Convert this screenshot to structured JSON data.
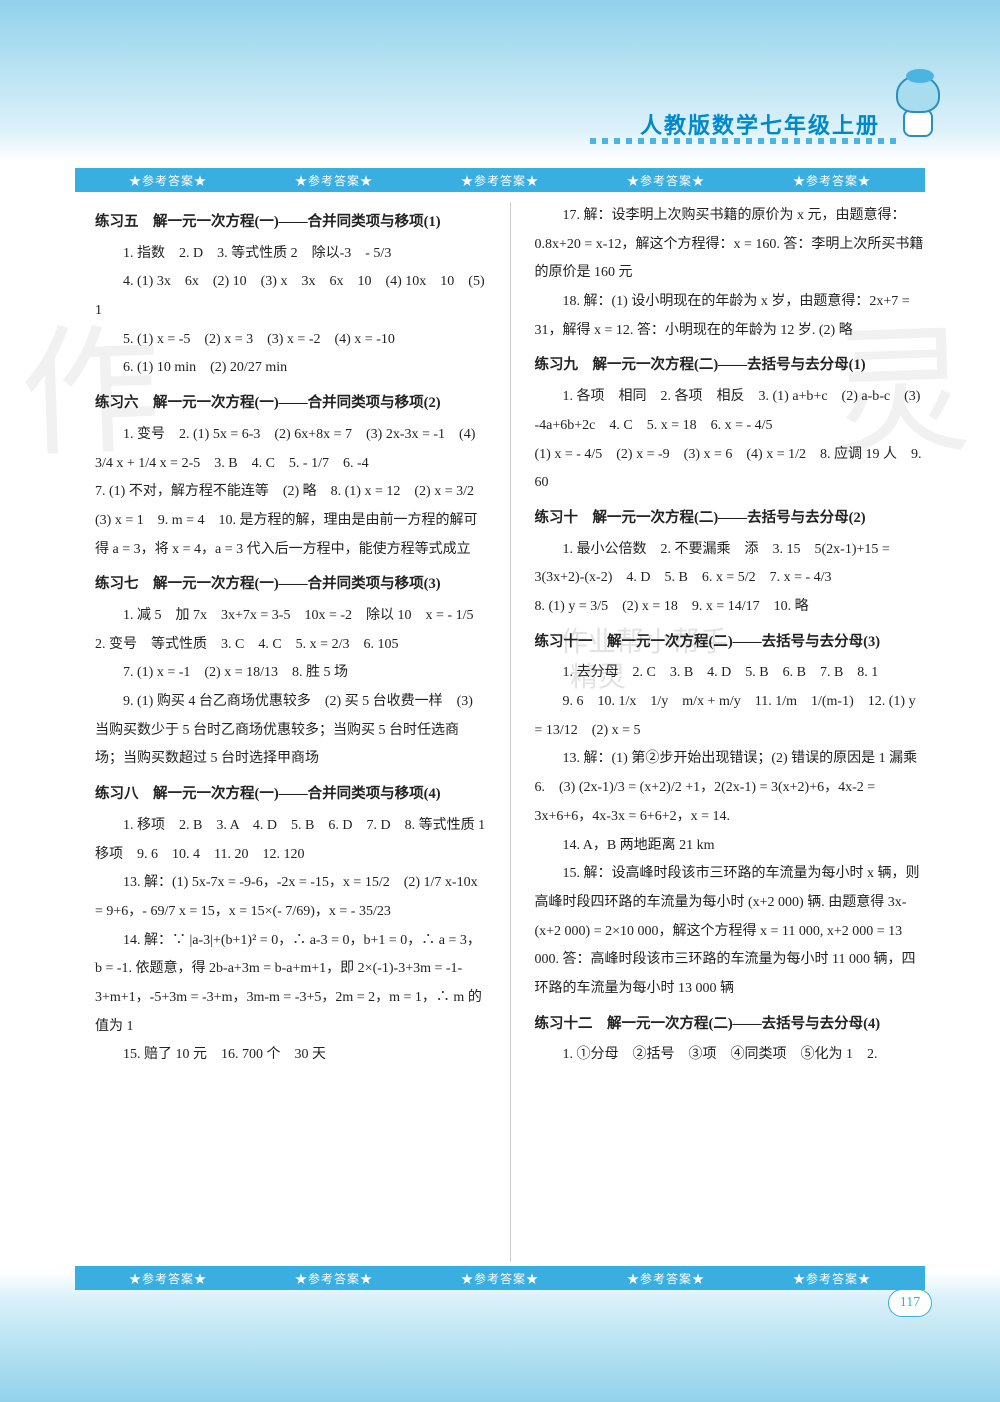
{
  "header": {
    "title": "人教版数学七年级上册",
    "banner_label": "★参考答案★",
    "page_number": "117"
  },
  "colors": {
    "banner_bg": "#39aee0",
    "banner_text": "#ffffff",
    "title_color": "#0088cc",
    "body_text": "#222222",
    "gradient_top": "#7ec9e8",
    "gradient_mid": "#a8dcef"
  },
  "left_column": {
    "ex5_title": "练习五　解一元一次方程(一)——合并同类项与移项(1)",
    "ex5_body": [
      "　　1. 指数　2. D　3. 等式性质 2　除以-3　- 5/3",
      "　　4. (1) 3x　6x　(2) 10　(3) x　3x　6x　10　(4) 10x　10　(5) 1",
      "　　5. (1) x = -5　(2) x = 3　(3) x = -2　(4) x = -10",
      "　　6. (1) 10 min　(2) 20/27 min"
    ],
    "ex6_title": "练习六　解一元一次方程(一)——合并同类项与移项(2)",
    "ex6_body": [
      "　　1. 变号　2. (1) 5x = 6-3　(2) 6x+8x = 7　(3) 2x-3x = -1　(4) 3/4 x + 1/4 x = 2-5　3. B　4. C　5. - 1/7　6. -4",
      "7. (1) 不对，解方程不能连等　(2) 略　8. (1) x = 12　(2) x = 3/2　(3) x = 1　9. m = 4　10. 是方程的解，理由是由前一方程的解可得 a = 3，将 x = 4，a = 3 代入后一方程中，能使方程等式成立"
    ],
    "ex7_title": "练习七　解一元一次方程(一)——合并同类项与移项(3)",
    "ex7_body": [
      "　　1. 减 5　加 7x　3x+7x = 3-5　10x = -2　除以 10　x = - 1/5　2. 变号　等式性质　3. C　4. C　5. x = 2/3　6. 105",
      "　　7. (1) x = -1　(2) x = 18/13　8. 胜 5 场",
      "　　9. (1) 购买 4 台乙商场优惠较多　(2) 买 5 台收费一样　(3) 当购买数少于 5 台时乙商场优惠较多；当购买 5 台时任选商场；当购买数超过 5 台时选择甲商场"
    ],
    "ex8_title": "练习八　解一元一次方程(一)——合并同类项与移项(4)",
    "ex8_body": [
      "　　1. 移项　2. B　3. A　4. D　5. B　6. D　7. D　8. 等式性质 1　移项　9. 6　10. 4　11. 20　12. 120",
      "　　13. 解：(1) 5x-7x = -9-6，-2x = -15，x = 15/2　(2) 1/7 x-10x = 9+6，- 69/7 x = 15，x = 15×(- 7/69)，x = - 35/23",
      "　　14. 解：∵ |a-3|+(b+1)² = 0，∴ a-3 = 0，b+1 = 0，∴ a = 3，b = -1. 依题意，得 2b-a+3m = b-a+m+1，即 2×(-1)-3+3m = -1-3+m+1，-5+3m = -3+m，3m-m = -3+5，2m = 2，m = 1，∴ m 的值为 1",
      "　　15. 赔了 10 元　16. 700 个　30 天"
    ]
  },
  "right_column": {
    "p17": "　　17. 解：设李明上次购买书籍的原价为 x 元，由题意得：0.8x+20 = x-12，解这个方程得：x = 160. 答：李明上次所买书籍的原价是 160 元",
    "p18": "　　18. 解：(1) 设小明现在的年龄为 x 岁，由题意得：2x+7 = 31，解得 x = 12. 答：小明现在的年龄为 12 岁. (2) 略",
    "ex9_title": "练习九　解一元一次方程(二)——去括号与去分母(1)",
    "ex9_body": [
      "　　1. 各项　相同　2. 各项　相反　3. (1) a+b+c　(2) a-b-c　(3) -4a+6b+2c　4. C　5. x = 18　6. x = - 4/5",
      "(1) x = - 4/5　(2) x = -9　(3) x = 6　(4) x = 1/2　8. 应调 19 人　9. 60"
    ],
    "ex10_title": "练习十　解一元一次方程(二)——去括号与去分母(2)",
    "ex10_body": [
      "　　1. 最小公倍数　2. 不要漏乘　添　3. 15　5(2x-1)+15 = 3(3x+2)-(x-2)　4. D　5. B　6. x = 5/2　7. x = - 4/3",
      "8. (1) y = 3/5　(2) x = 18　9. x = 14/17　10. 略"
    ],
    "ex11_title": "练习十一　解一元一次方程(二)——去括号与去分母(3)",
    "ex11_body": [
      "　　1. 去分母　2. C　3. B　4. D　5. B　6. B　7. B　8. 1",
      "　　9. 6　10. 1/x　1/y　m/x + m/y　11. 1/m　1/(m-1)　12. (1) y = 13/12　(2) x = 5",
      "　　13. 解：(1) 第②步开始出现错误；(2) 错误的原因是 1 漏乘 6.　(3) (2x-1)/3 = (x+2)/2 +1，2(2x-1) = 3(x+2)+6，4x-2 = 3x+6+6，4x-3x = 6+6+2，x = 14.",
      "　　14. A，B 两地距离 21 km",
      "　　15. 解：设高峰时段该市三环路的车流量为每小时 x 辆，则高峰时段四环路的车流量为每小时 (x+2 000) 辆. 由题意得 3x-(x+2 000) = 2×10 000，解这个方程得 x = 11 000, x+2 000 = 13 000. 答：高峰时段该市三环路的车流量为每小时 11 000 辆，四环路的车流量为每小时 13 000 辆"
    ],
    "ex12_title": "练习十二　解一元一次方程(二)——去括号与去分母(4)",
    "ex12_body": [
      "　　1. ①分母　②括号　③项　④同类项　⑤化为 1　2."
    ]
  }
}
